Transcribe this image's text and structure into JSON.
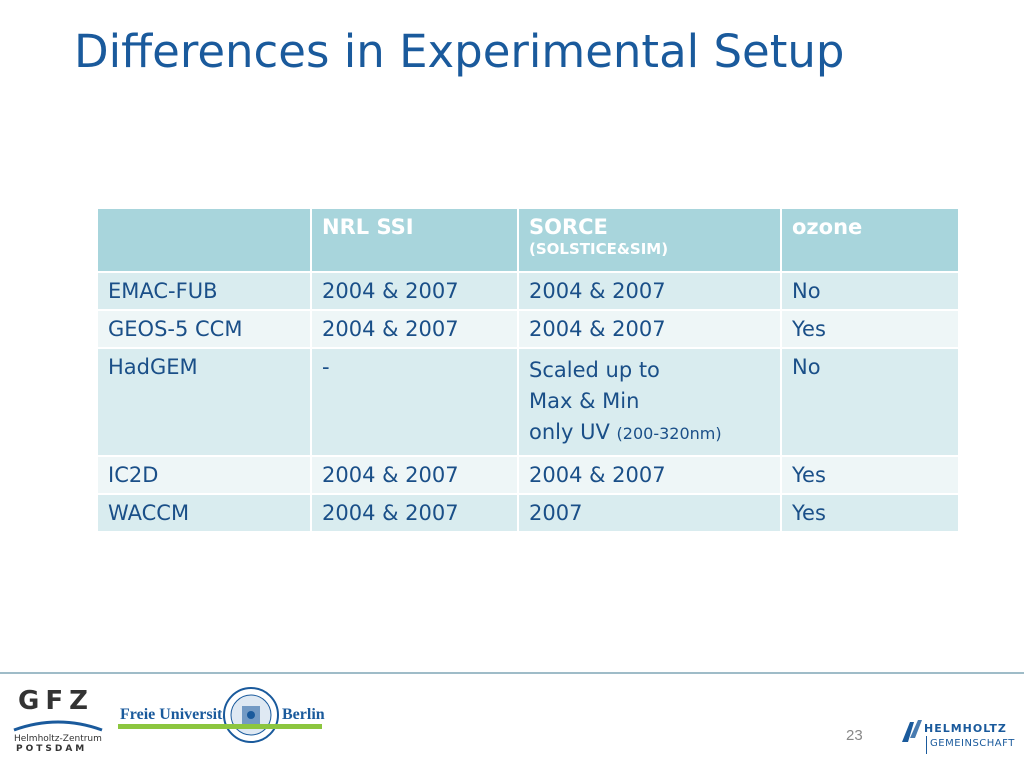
{
  "slide": {
    "title": "Differences in Experimental Setup",
    "page_number": "23"
  },
  "table": {
    "header": {
      "c0": "",
      "c1": "NRL SSI",
      "c2": "SORCE",
      "c2_sub": "(SOLSTICE&SIM)",
      "c3": "ozone"
    },
    "rows": [
      {
        "model": "EMAC-FUB",
        "nrl": "2004 & 2007",
        "sorce": "2004 & 2007",
        "ozone": "No"
      },
      {
        "model": "GEOS-5 CCM",
        "nrl": "2004 & 2007",
        "sorce": "2004 & 2007",
        "ozone": "Yes"
      },
      {
        "model": "HadGEM",
        "nrl": "-",
        "sorce_l1": "Scaled up to",
        "sorce_l2": "Max & Min",
        "sorce_l3": "only UV",
        "sorce_l3_small": "(200-320nm)",
        "ozone": "No"
      },
      {
        "model": "IC2D",
        "nrl": "2004 & 2007",
        "sorce": "2004 & 2007",
        "ozone": "Yes"
      },
      {
        "model": "WACCM",
        "nrl": "2004 & 2007",
        "sorce": "2007",
        "ozone": "Yes"
      }
    ]
  },
  "footer": {
    "gfz_letters": "GFZ",
    "gfz_line1": "Helmholtz-Zentrum",
    "gfz_line2": "POTSDAM",
    "fu_left": "Freie Universität",
    "fu_right": "Berlin",
    "helmholtz_line1": "HELMHOLTZ",
    "helmholtz_line2": "GEMEINSCHAFT"
  },
  "colors": {
    "title": "#1a5a9c",
    "header_bg": "#a8d5dc",
    "row_even": "#d9ecef",
    "row_odd": "#eef6f7",
    "fu_green": "#8cc63f"
  }
}
